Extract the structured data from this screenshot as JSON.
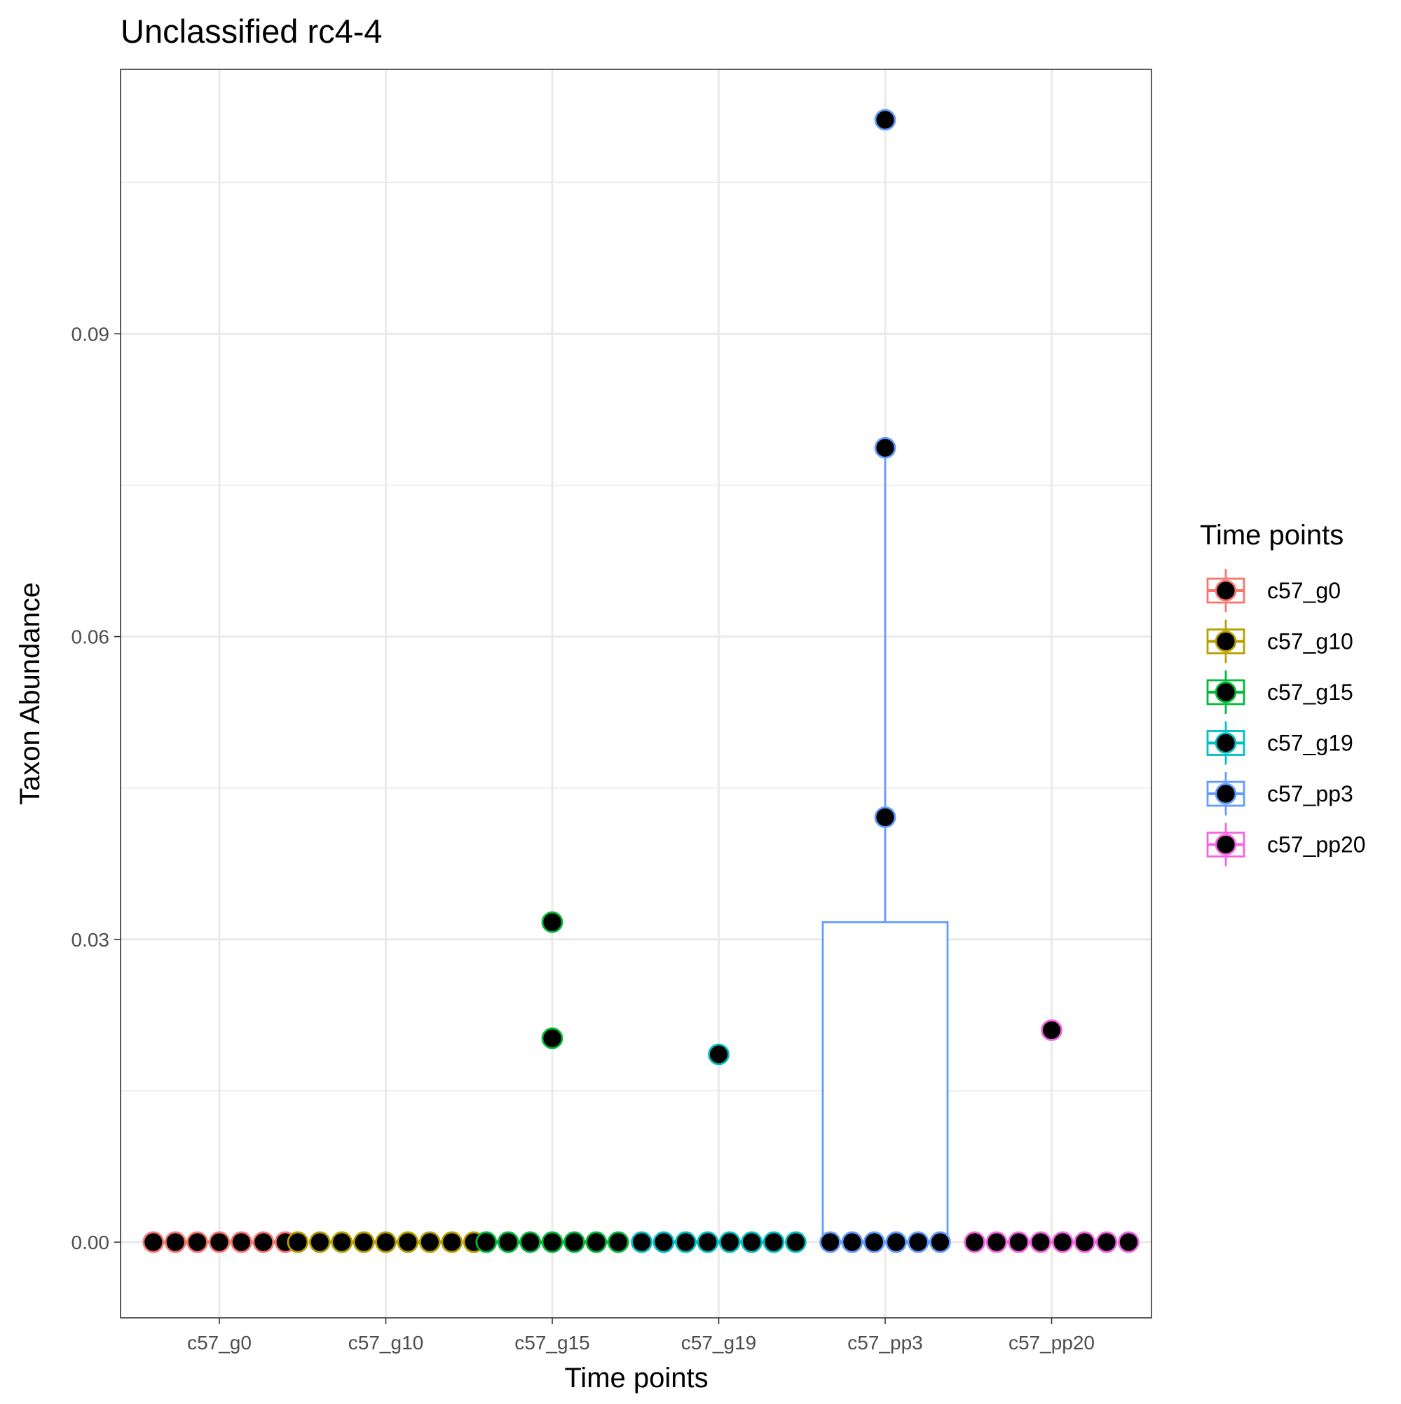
{
  "chart_data": {
    "type": "box",
    "title": "Unclassified  rc4-4",
    "xlabel": "Time points",
    "ylabel": "Taxon Abundance",
    "categories": [
      "c57_g0",
      "c57_g10",
      "c57_g15",
      "c57_g19",
      "c57_pp3",
      "c57_pp20"
    ],
    "ylim": [
      -0.0075,
      0.1162
    ],
    "yticks": [
      0.0,
      0.03,
      0.06,
      0.09
    ],
    "ytick_labels": [
      "0.00",
      "0.03",
      "0.06",
      "0.09"
    ],
    "grid": true,
    "legend": {
      "title": "Time points",
      "placement": "right",
      "items": [
        "c57_g0",
        "c57_g10",
        "c57_g15",
        "c57_g19",
        "c57_pp3",
        "c57_pp20"
      ]
    },
    "colors": {
      "c57_g0": "#F8766D",
      "c57_g10": "#B79F00",
      "c57_g15": "#00BA38",
      "c57_g19": "#00BFC4",
      "c57_pp3": "#619CFF",
      "c57_pp20": "#F564E3"
    },
    "boxes": [
      {
        "category": "c57_g0",
        "min": 0,
        "q1": 0,
        "median": 0,
        "q3": 0,
        "max": 0
      },
      {
        "category": "c57_g10",
        "min": 0,
        "q1": 0,
        "median": 0,
        "q3": 0,
        "max": 0
      },
      {
        "category": "c57_g15",
        "min": 0,
        "q1": 0,
        "median": 0,
        "q3": 0,
        "max": 0
      },
      {
        "category": "c57_g19",
        "min": 0,
        "q1": 0,
        "median": 0,
        "q3": 0,
        "max": 0
      },
      {
        "category": "c57_pp3",
        "min": 0,
        "q1": 0,
        "median": 0,
        "q3": 0.0317,
        "max": 0.0787
      },
      {
        "category": "c57_pp20",
        "min": 0,
        "q1": 0,
        "median": 0,
        "q3": 0,
        "max": 0
      }
    ],
    "points": [
      {
        "category": "c57_g0",
        "values": [
          0,
          0,
          0,
          0,
          0,
          0,
          0
        ]
      },
      {
        "category": "c57_g10",
        "values": [
          0,
          0,
          0,
          0,
          0,
          0,
          0,
          0,
          0
        ]
      },
      {
        "category": "c57_g15",
        "values": [
          0.0317,
          0.0202,
          0,
          0,
          0,
          0,
          0,
          0,
          0
        ]
      },
      {
        "category": "c57_g19",
        "values": [
          0.0186,
          0,
          0,
          0,
          0,
          0,
          0,
          0,
          0
        ]
      },
      {
        "category": "c57_pp3",
        "values": [
          0.1112,
          0.0787,
          0.0421,
          0,
          0,
          0,
          0,
          0,
          0
        ]
      },
      {
        "category": "c57_pp20",
        "values": [
          0.021,
          0,
          0,
          0,
          0,
          0,
          0,
          0,
          0
        ]
      }
    ]
  }
}
